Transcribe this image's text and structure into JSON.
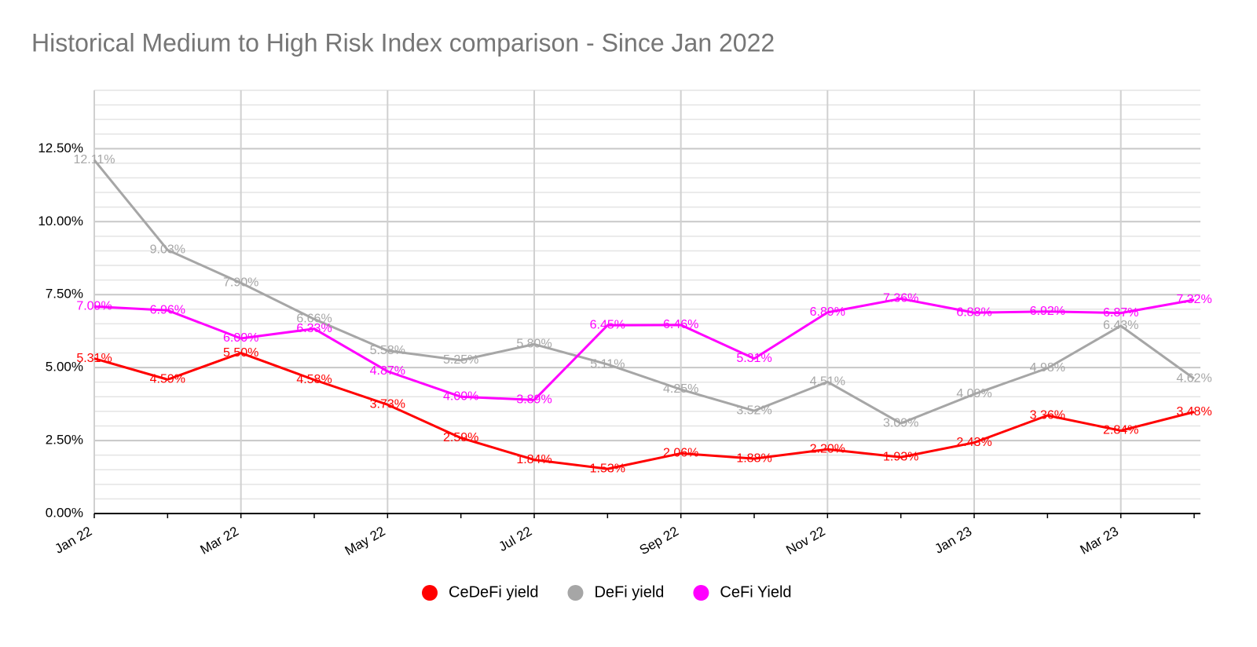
{
  "chart_data": {
    "type": "line",
    "title": "Historical Medium to High Risk Index comparison - Since Jan 2022",
    "categories": [
      "Jan 22",
      null,
      "Mar 22",
      null,
      "May 22",
      null,
      "Jul 22",
      null,
      "Sep 22",
      null,
      "Nov 22",
      null,
      "Jan 23",
      null,
      "Mar 23",
      null
    ],
    "series": [
      {
        "name": "CeDeFi yield",
        "color": "#ff0000",
        "values": [
          5.31,
          4.59,
          5.5,
          4.58,
          3.73,
          2.59,
          1.84,
          1.53,
          2.06,
          1.88,
          2.2,
          1.93,
          2.43,
          3.36,
          2.84,
          3.48
        ],
        "value_labels": [
          "5.31%",
          "4.59%",
          "5.50%",
          "4.58%",
          "3.73%",
          "2.59%",
          "1.84%",
          "1.53%",
          "2.06%",
          "1.88%",
          "2.20%",
          "1.93%",
          "2.43%",
          "3.36%",
          "2.84%",
          "3.48%"
        ]
      },
      {
        "name": "DeFi yield",
        "color": "#a6a6a6",
        "values": [
          12.11,
          9.03,
          7.9,
          6.66,
          5.58,
          5.25,
          5.8,
          5.11,
          4.25,
          3.52,
          4.51,
          3.09,
          4.09,
          4.98,
          6.43,
          4.62
        ],
        "value_labels": [
          "12.11%",
          "9.03%",
          "7.90%",
          "6.66%",
          "5.58%",
          "5.25%",
          "5.80%",
          "5.11%",
          "4.25%",
          "3.52%",
          "4.51%",
          "3.09%",
          "4.09%",
          "4.98%",
          "6.43%",
          "4.62%"
        ]
      },
      {
        "name": "CeFi Yield",
        "color": "#ff00ff",
        "values": [
          7.09,
          6.96,
          6.0,
          6.33,
          4.87,
          4.0,
          3.89,
          6.45,
          6.46,
          5.31,
          6.89,
          7.36,
          6.88,
          6.92,
          6.87,
          7.32
        ],
        "value_labels": [
          "7.09%",
          "6.96%",
          "6.00%",
          "6.33%",
          "4.87%",
          "4.00%",
          "3.89%",
          "6.45%",
          "6.46%",
          "5.31%",
          "6.89%",
          "7.36%",
          "6.88%",
          "6.92%",
          "6.87%",
          "7.32%"
        ]
      }
    ],
    "ylim": [
      0,
      14.5
    ],
    "yticks": [
      {
        "value": 0,
        "label": "0.00%"
      },
      {
        "value": 2.5,
        "label": "2.50%"
      },
      {
        "value": 5,
        "label": "5.00%"
      },
      {
        "value": 7.5,
        "label": "7.50%"
      },
      {
        "value": 10,
        "label": "10.00%"
      },
      {
        "value": 12.5,
        "label": "12.50%"
      }
    ],
    "grid": true,
    "legend": "bottom"
  }
}
